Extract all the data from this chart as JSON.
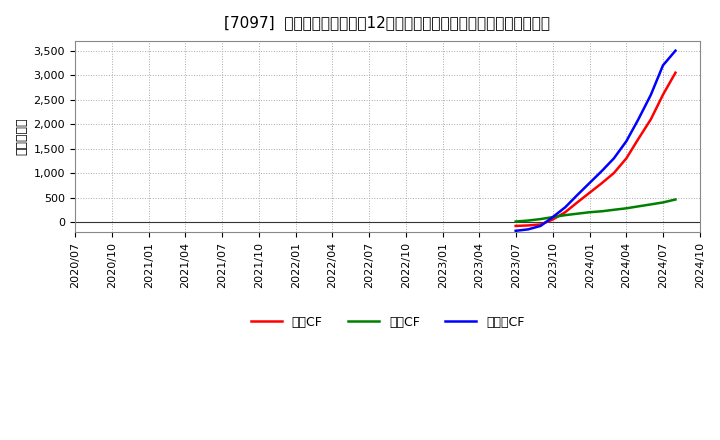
{
  "title": "[7097]  キャッシュフローの12か月移動合計の対前年同期増減額の推移",
  "ylabel": "（百万円）",
  "background_color": "#ffffff",
  "plot_bg_color": "#ffffff",
  "grid_color": "#aaaaaa",
  "ylim": [
    -200,
    3700
  ],
  "yticks": [
    0,
    500,
    1000,
    1500,
    2000,
    2500,
    3000,
    3500
  ],
  "series": {
    "営業CF": {
      "color": "#ff0000",
      "dates": [
        "2023-07-01",
        "2023-08-01",
        "2023-09-01",
        "2023-10-01",
        "2023-11-01",
        "2023-12-01",
        "2024-01-01",
        "2024-02-01",
        "2024-03-01",
        "2024-04-01",
        "2024-05-01",
        "2024-06-01",
        "2024-07-01",
        "2024-08-01"
      ],
      "values": [
        -80,
        -70,
        -50,
        50,
        200,
        400,
        600,
        800,
        1000,
        1300,
        1700,
        2100,
        2600,
        3050
      ]
    },
    "投資CF": {
      "color": "#008000",
      "dates": [
        "2023-07-01",
        "2023-08-01",
        "2023-09-01",
        "2023-10-01",
        "2023-11-01",
        "2023-12-01",
        "2024-01-01",
        "2024-02-01",
        "2024-03-01",
        "2024-04-01",
        "2024-05-01",
        "2024-06-01",
        "2024-07-01",
        "2024-08-01"
      ],
      "values": [
        10,
        30,
        60,
        100,
        140,
        170,
        200,
        220,
        250,
        280,
        320,
        360,
        400,
        460
      ]
    },
    "フリーCF": {
      "color": "#0000ff",
      "dates": [
        "2023-07-01",
        "2023-08-01",
        "2023-09-01",
        "2023-10-01",
        "2023-11-01",
        "2023-12-01",
        "2024-01-01",
        "2024-02-01",
        "2024-03-01",
        "2024-04-01",
        "2024-05-01",
        "2024-06-01",
        "2024-07-01",
        "2024-08-01"
      ],
      "values": [
        -180,
        -150,
        -80,
        100,
        300,
        550,
        800,
        1050,
        1300,
        1650,
        2100,
        2600,
        3200,
        3500
      ]
    }
  },
  "xmin": "2020-07-01",
  "xmax": "2024-10-01",
  "xtick_dates": [
    "2020-07-01",
    "2020-10-01",
    "2021-01-01",
    "2021-04-01",
    "2021-07-01",
    "2021-10-01",
    "2022-01-01",
    "2022-04-01",
    "2022-07-01",
    "2022-10-01",
    "2023-01-01",
    "2023-04-01",
    "2023-07-01",
    "2023-10-01",
    "2024-01-01",
    "2024-04-01",
    "2024-07-01",
    "2024-10-01"
  ],
  "xtick_labels": [
    "2020/07",
    "2020/10",
    "2021/01",
    "2021/04",
    "2021/07",
    "2021/10",
    "2022/01",
    "2022/04",
    "2022/07",
    "2022/10",
    "2023/01",
    "2023/04",
    "2023/07",
    "2023/10",
    "2024/01",
    "2024/04",
    "2024/07",
    "2024/10"
  ],
  "legend_labels": [
    "営業CF",
    "投資CF",
    "フリーCF"
  ],
  "legend_colors": [
    "#ff0000",
    "#008000",
    "#0000ff"
  ],
  "title_fontsize": 11,
  "axis_fontsize": 9,
  "tick_fontsize": 8,
  "legend_fontsize": 9,
  "linewidth": 1.8
}
